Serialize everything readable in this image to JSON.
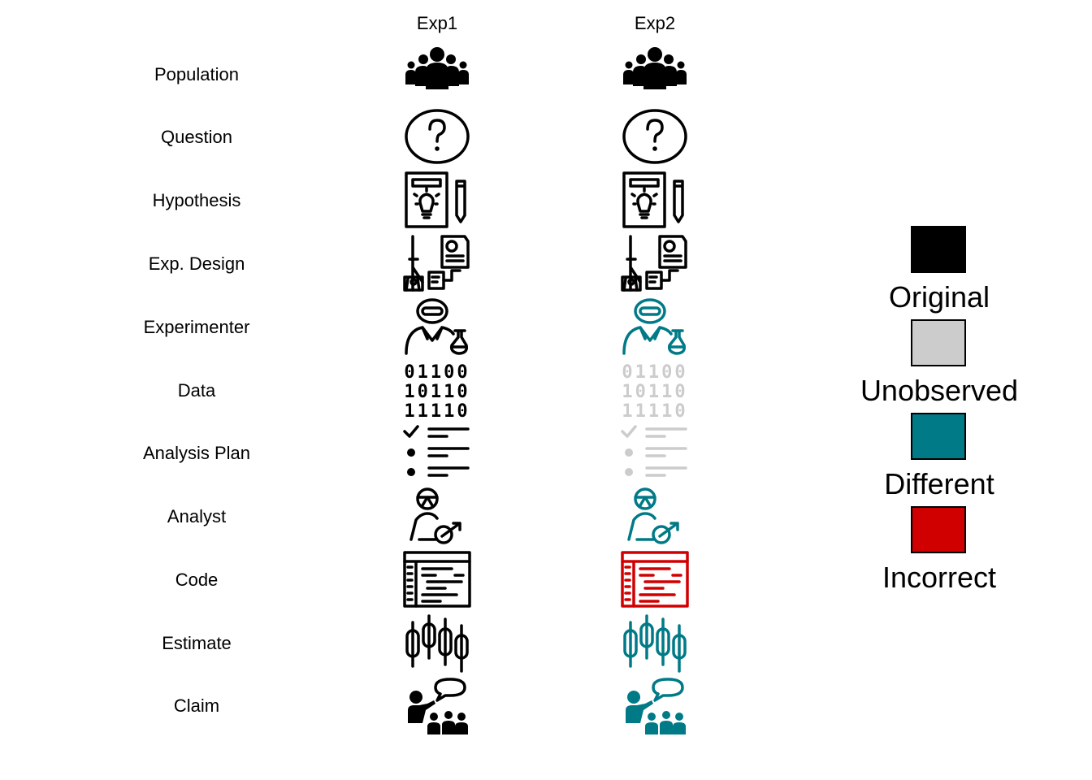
{
  "columns": [
    {
      "label": "Exp1"
    },
    {
      "label": "Exp2"
    }
  ],
  "rows": [
    {
      "label": "Population",
      "icon": "group-of-people-icon",
      "status": [
        "original",
        "original"
      ]
    },
    {
      "label": "Question",
      "icon": "question-mark-circle-icon",
      "status": [
        "original",
        "original"
      ]
    },
    {
      "label": "Hypothesis",
      "icon": "lightbulb-pencil-icon",
      "status": [
        "original",
        "original"
      ]
    },
    {
      "label": "Exp. Design",
      "icon": "lab-design-document-icon",
      "status": [
        "original",
        "original"
      ]
    },
    {
      "label": "Experimenter",
      "icon": "scientist-flask-icon",
      "status": [
        "original",
        "different"
      ]
    },
    {
      "label": "Data",
      "icon": "binary-data-icon",
      "status": [
        "original",
        "unobserved"
      ]
    },
    {
      "label": "Analysis Plan",
      "icon": "checklist-icon",
      "status": [
        "original",
        "unobserved"
      ]
    },
    {
      "label": "Analyst",
      "icon": "analyst-chart-icon",
      "status": [
        "original",
        "different"
      ]
    },
    {
      "label": "Code",
      "icon": "code-window-icon",
      "status": [
        "original",
        "incorrect"
      ]
    },
    {
      "label": "Estimate",
      "icon": "candlestick-icon",
      "status": [
        "original",
        "different"
      ]
    },
    {
      "label": "Claim",
      "icon": "presenter-audience-icon",
      "status": [
        "original",
        "different"
      ]
    }
  ],
  "binary_lines": [
    "01100",
    "10110",
    "11110"
  ],
  "legend": [
    {
      "label": "Original",
      "key": "original",
      "color": "#000000"
    },
    {
      "label": "Unobserved",
      "key": "unobserved",
      "color": "#cccccc"
    },
    {
      "label": "Different",
      "key": "different",
      "color": "#007a87"
    },
    {
      "label": "Incorrect",
      "key": "incorrect",
      "color": "#d00000"
    }
  ]
}
